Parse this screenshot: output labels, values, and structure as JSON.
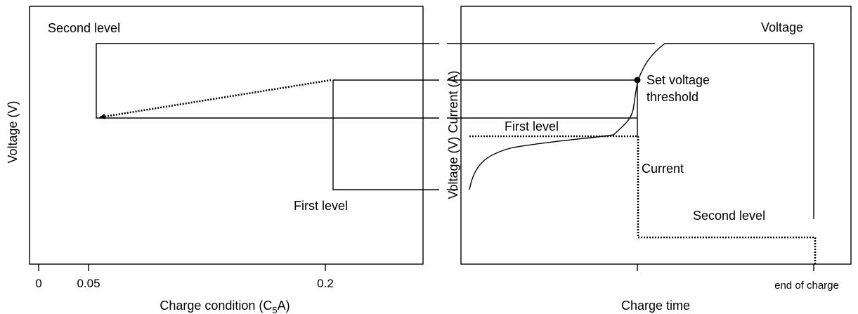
{
  "left_panel": {
    "y_axis_label": "Voltage (V)",
    "x_axis_label_parts": [
      "Charge condition (C",
      "5",
      "A)"
    ],
    "x_ticks": [
      "0",
      "0.05",
      "0.2"
    ],
    "annotations": {
      "second_level": "Second level",
      "first_level": "First level"
    }
  },
  "right_panel": {
    "y_axis_label": "Voltage (V) Current (A)",
    "x_axis_label": "Charge time",
    "x_tick": "end of charge",
    "annotations": {
      "voltage": "Voltage",
      "set_voltage_threshold": [
        "Set voltage",
        "threshold"
      ],
      "first_level": "First level",
      "current": "Current",
      "second_level": "Second level"
    }
  }
}
